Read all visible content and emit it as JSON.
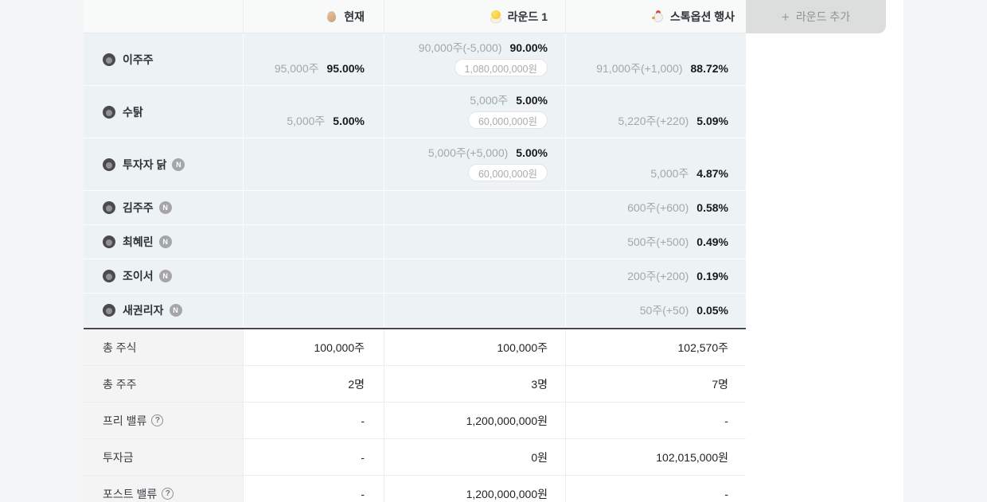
{
  "icons": {
    "plus": "+",
    "new_badge": "N",
    "help": "?"
  },
  "colors": {
    "page_background": "#f4f5f6",
    "card_background": "#ffffff",
    "shareholder_row_tint": "#edf3f5",
    "summary_label_background": "#f4f4f5",
    "totals_divider": "#474747",
    "add_round_button_background": "#dcdddd",
    "shares_text": "#a3a7ab",
    "percent_text": "#17191c"
  },
  "table": {
    "add_round_label": "라운드 추가",
    "columns": [
      {
        "key": "current",
        "label": "현재",
        "icon": "egg-icon"
      },
      {
        "key": "round1",
        "label": "라운드 1",
        "icon": "chick-icon"
      },
      {
        "key": "option",
        "label": "스톡옵션 행사",
        "icon": "rooster-icon"
      }
    ],
    "shareholders": [
      {
        "name": "이주주",
        "new_badge": false,
        "cells": {
          "current": {
            "shares": "95,000주",
            "pct": "95.00%"
          },
          "round1": {
            "shares": "90,000주(-5,000)",
            "pct": "90.00%",
            "amount": "1,080,000,000원"
          },
          "option": {
            "shares": "91,000주(+1,000)",
            "pct": "88.72%"
          }
        }
      },
      {
        "name": "수탉",
        "new_badge": false,
        "cells": {
          "current": {
            "shares": "5,000주",
            "pct": "5.00%"
          },
          "round1": {
            "shares": "5,000주",
            "pct": "5.00%",
            "amount": "60,000,000원"
          },
          "option": {
            "shares": "5,220주(+220)",
            "pct": "5.09%"
          }
        }
      },
      {
        "name": "투자자 닭",
        "new_badge": true,
        "cells": {
          "round1": {
            "shares": "5,000주(+5,000)",
            "pct": "5.00%",
            "amount": "60,000,000원"
          },
          "option": {
            "shares": "5,000주",
            "pct": "4.87%"
          }
        }
      },
      {
        "name": "김주주",
        "new_badge": true,
        "cells": {
          "option": {
            "shares": "600주(+600)",
            "pct": "0.58%"
          }
        }
      },
      {
        "name": "최혜린",
        "new_badge": true,
        "cells": {
          "option": {
            "shares": "500주(+500)",
            "pct": "0.49%"
          }
        }
      },
      {
        "name": "조이서",
        "new_badge": true,
        "cells": {
          "option": {
            "shares": "200주(+200)",
            "pct": "0.19%"
          }
        }
      },
      {
        "name": "새권리자",
        "new_badge": true,
        "cells": {
          "option": {
            "shares": "50주(+50)",
            "pct": "0.05%"
          }
        }
      }
    ],
    "summary": [
      {
        "label": "총 주식",
        "help": false,
        "values": [
          "100,000주",
          "100,000주",
          "102,570주"
        ]
      },
      {
        "label": "총 주주",
        "help": false,
        "values": [
          "2명",
          "3명",
          "7명"
        ]
      },
      {
        "label": "프리 밸류",
        "help": true,
        "values": [
          "-",
          "1,200,000,000원",
          "-"
        ]
      },
      {
        "label": "투자금",
        "help": false,
        "values": [
          "-",
          "0원",
          "102,015,000원"
        ]
      },
      {
        "label": "포스트 밸류",
        "help": true,
        "values": [
          "-",
          "1,200,000,000원",
          "-"
        ]
      }
    ]
  }
}
